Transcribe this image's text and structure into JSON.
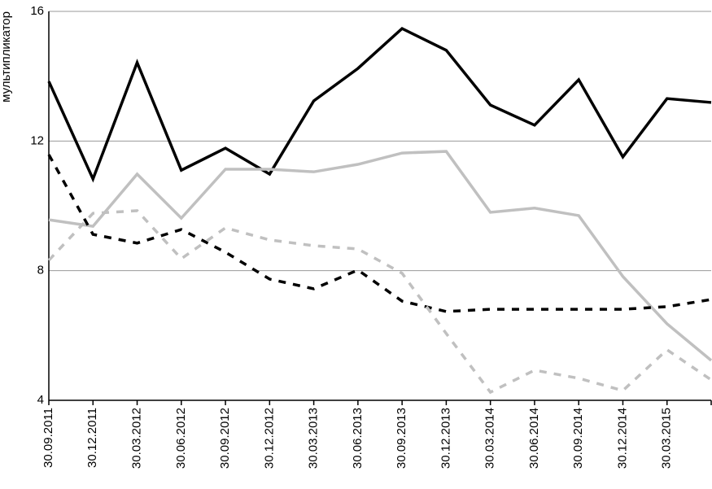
{
  "chart_data": {
    "type": "line",
    "y_label": "мультипликатор",
    "categories": [
      "30.09.2011",
      "30.12.2011",
      "30.03.2012",
      "30.06.2012",
      "30.09.2012",
      "30.12.2012",
      "30.03.2013",
      "30.06.2013",
      "30.09.2013",
      "30.12.2013",
      "30.03.2014",
      "30.06.2014",
      "30.09.2014",
      "30.12.2014",
      "30.03.2015",
      null
    ],
    "series": [
      {
        "color": "#000000",
        "dashed": false,
        "values": [
          13.84,
          10.83,
          14.42,
          11.1,
          11.78,
          10.98,
          13.24,
          14.24,
          15.47,
          14.8,
          13.11,
          12.49,
          13.89,
          11.51,
          13.31,
          13.19
        ]
      },
      {
        "color": "#c0c0c0",
        "dashed": false,
        "values": [
          9.57,
          9.37,
          10.98,
          9.62,
          11.13,
          11.13,
          11.05,
          11.28,
          11.63,
          11.68,
          9.8,
          9.93,
          9.7,
          7.82,
          6.36,
          5.23
        ]
      },
      {
        "color": "#000000",
        "dashed": true,
        "values": [
          11.58,
          9.12,
          8.85,
          9.27,
          8.57,
          7.74,
          7.44,
          8.02,
          7.06,
          6.74,
          6.81,
          6.81,
          6.81,
          6.81,
          6.89,
          7.11
        ]
      },
      {
        "color": "#c0c0c0",
        "dashed": true,
        "values": [
          8.32,
          9.77,
          9.85,
          8.37,
          9.32,
          8.95,
          8.77,
          8.67,
          7.92,
          6.06,
          4.25,
          4.93,
          4.68,
          4.3,
          5.56,
          4.63
        ]
      }
    ],
    "ylim": [
      4,
      16
    ],
    "yticks": [
      4,
      8,
      12,
      16
    ],
    "grid": true
  }
}
